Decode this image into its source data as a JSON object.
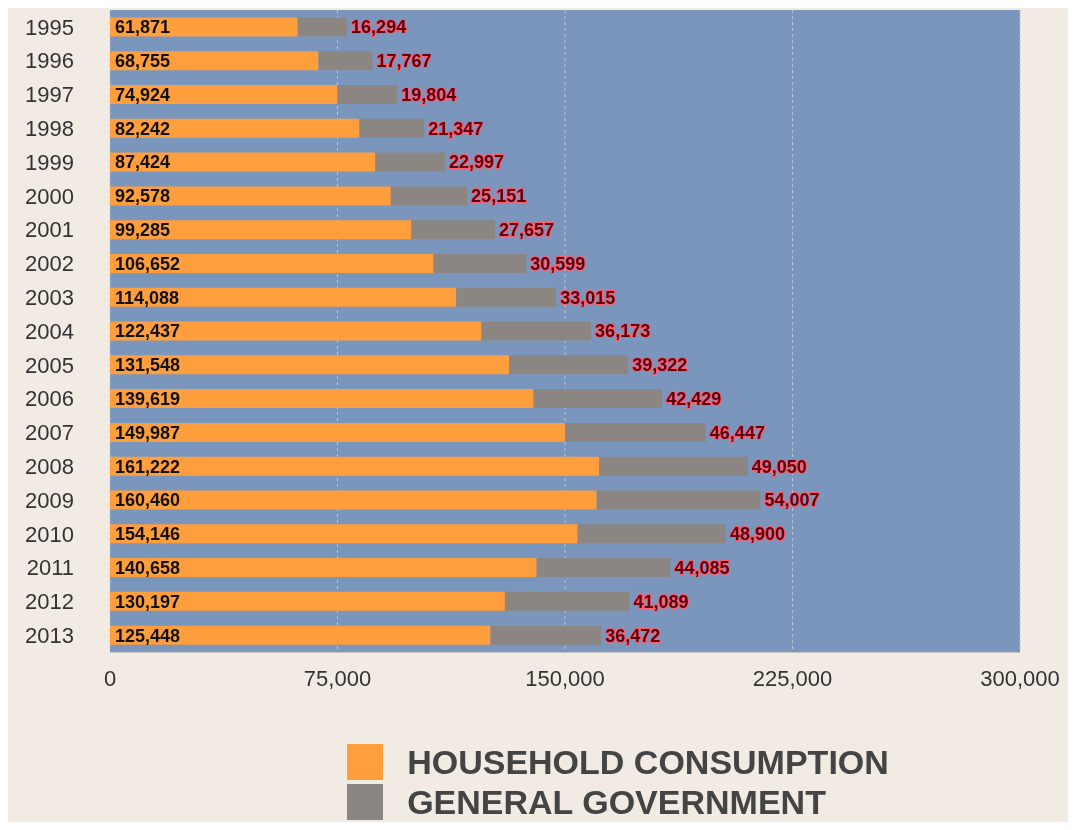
{
  "chart_data": {
    "type": "bar",
    "orientation": "horizontal",
    "stacked": true,
    "categories": [
      "1995",
      "1996",
      "1997",
      "1998",
      "1999",
      "2000",
      "2001",
      "2002",
      "2003",
      "2004",
      "2005",
      "2006",
      "2007",
      "2008",
      "2009",
      "2010",
      "2011",
      "2012",
      "2013"
    ],
    "series": [
      {
        "name": "HOUSEHOLD CONSUMPTION",
        "color": "#ff9e3d",
        "values": [
          61871,
          68755,
          74924,
          82242,
          87424,
          92578,
          99285,
          106652,
          114088,
          122437,
          131548,
          139619,
          149987,
          161222,
          160460,
          154146,
          140658,
          130197,
          125448
        ],
        "value_labels": [
          "61,871",
          "68,755",
          "74,924",
          "82,242",
          "87,424",
          "92,578",
          "99,285",
          "106,652",
          "114,088",
          "122,437",
          "131,548",
          "139,619",
          "149,987",
          "161,222",
          "160,460",
          "154,146",
          "140,658",
          "130,197",
          "125,448"
        ]
      },
      {
        "name": "GENERAL GOVERNMENT",
        "color": "#8b8682",
        "values": [
          16294,
          17767,
          19804,
          21347,
          22997,
          25151,
          27657,
          30599,
          33015,
          36173,
          39322,
          42429,
          46447,
          49050,
          54007,
          48900,
          44085,
          41089,
          36472
        ],
        "value_labels": [
          "16,294",
          "17,767",
          "19,804",
          "21,347",
          "22,997",
          "25,151",
          "27,657",
          "30,599",
          "33,015",
          "36,173",
          "39,322",
          "42,429",
          "46,447",
          "49,050",
          "54,007",
          "48,900",
          "44,085",
          "41,089",
          "36,472"
        ]
      }
    ],
    "xlim": [
      0,
      300000
    ],
    "xticks": [
      {
        "value": 0,
        "label": "0"
      },
      {
        "value": 75000,
        "label": "75,000"
      },
      {
        "value": 150000,
        "label": "150,000"
      },
      {
        "value": 225000,
        "label": "225,000"
      },
      {
        "value": 300000,
        "label": "300,000"
      }
    ],
    "grid": "x",
    "legend": "bottom"
  }
}
